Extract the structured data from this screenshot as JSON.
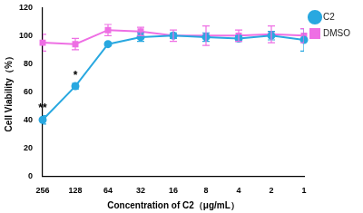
{
  "chart_data": {
    "type": "line",
    "x_label": "Concentration of C2（μg/mL）",
    "y_label": "Cell Viability（%）",
    "categories": [
      "256",
      "128",
      "64",
      "32",
      "16",
      "8",
      "4",
      "2",
      "1"
    ],
    "series": [
      {
        "name": "C2",
        "color": "#29a8e0",
        "marker": "circle",
        "values": [
          40,
          64,
          94,
          99,
          100,
          99,
          98,
          100,
          97
        ],
        "errors": [
          3,
          2,
          1,
          3,
          2,
          3,
          2,
          3,
          8
        ]
      },
      {
        "name": "DMSO",
        "color": "#ee6fe4",
        "marker": "square",
        "values": [
          95,
          94,
          104,
          103,
          100,
          100,
          100,
          101,
          100
        ],
        "errors": [
          6,
          4,
          4,
          3,
          4,
          7,
          4,
          6,
          5
        ]
      }
    ],
    "annotations": [
      {
        "text": "**",
        "category": "256",
        "series": "C2"
      },
      {
        "text": "*",
        "category": "128",
        "series": "C2"
      }
    ],
    "ylim": [
      0,
      120
    ],
    "yticks": [
      0,
      20,
      40,
      60,
      80,
      100,
      120
    ],
    "grid": false,
    "legend": "right"
  }
}
